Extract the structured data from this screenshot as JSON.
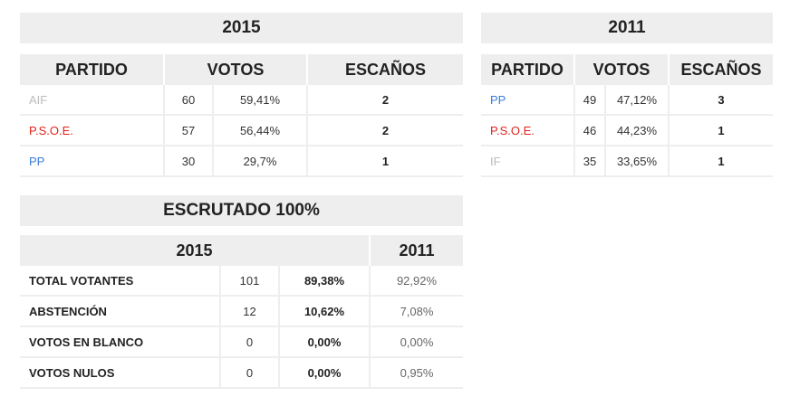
{
  "left": {
    "year": "2015",
    "headers": [
      "PARTIDO",
      "VOTOS",
      "ESCAÑOS"
    ],
    "rows": [
      {
        "party": "AIF",
        "color": "#bbbbbb",
        "votes": "60",
        "pct": "59,41%",
        "seats": "2"
      },
      {
        "party": "P.S.O.E.",
        "color": "#e2231a",
        "votes": "57",
        "pct": "56,44%",
        "seats": "2"
      },
      {
        "party": "PP",
        "color": "#3b7dd8",
        "votes": "30",
        "pct": "29,7%",
        "seats": "1"
      }
    ]
  },
  "right": {
    "year": "2011",
    "headers": [
      "PARTIDO",
      "VOTOS",
      "ESCAÑOS"
    ],
    "rows": [
      {
        "party": "PP",
        "color": "#3b7dd8",
        "votes": "49",
        "pct": "47,12%",
        "seats": "3"
      },
      {
        "party": "P.S.O.E.",
        "color": "#e2231a",
        "votes": "46",
        "pct": "44,23%",
        "seats": "1"
      },
      {
        "party": "IF",
        "color": "#bbbbbb",
        "votes": "35",
        "pct": "33,65%",
        "seats": "1"
      }
    ]
  },
  "scrutiny": {
    "title": "ESCRUTADO 100%",
    "col_2015": "2015",
    "col_2011": "2011",
    "rows": [
      {
        "label": "TOTAL VOTANTES",
        "count": "101",
        "pct": "89,38%",
        "pct_2011": "92,92%"
      },
      {
        "label": "ABSTENCIÓN",
        "count": "12",
        "pct": "10,62%",
        "pct_2011": "7,08%"
      },
      {
        "label": "VOTOS EN BLANCO",
        "count": "0",
        "pct": "0,00%",
        "pct_2011": "0,00%"
      },
      {
        "label": "VOTOS NULOS",
        "count": "0",
        "pct": "0,00%",
        "pct_2011": "0,95%"
      }
    ]
  }
}
